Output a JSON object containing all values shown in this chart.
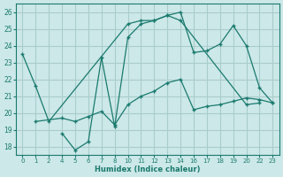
{
  "xlabel": "Humidex (Indice chaleur)",
  "bg_color": "#cce8e8",
  "grid_color": "#aacccc",
  "line_color": "#1a7a6e",
  "ylim": [
    17.5,
    26.5
  ],
  "yticks": [
    18,
    19,
    20,
    21,
    22,
    23,
    24,
    25,
    26
  ],
  "xtick_labels": [
    "0",
    "1",
    "2",
    "4",
    "5",
    "6",
    "7",
    "8",
    "10",
    "11",
    "12",
    "13",
    "14",
    "16",
    "17",
    "18",
    "19",
    "20",
    "22",
    "23"
  ],
  "lines": [
    {
      "xi": [
        0,
        1,
        2,
        8,
        9,
        10,
        11,
        12,
        17,
        18
      ],
      "y": [
        23.5,
        21.6,
        19.5,
        25.3,
        25.5,
        25.5,
        25.8,
        25.5,
        20.5,
        20.6
      ]
    },
    {
      "xi": [
        3,
        4,
        5,
        6,
        7,
        8,
        9,
        10,
        11,
        12,
        13,
        14,
        15,
        16,
        17,
        18,
        19
      ],
      "y": [
        18.8,
        17.8,
        18.3,
        23.3,
        19.2,
        24.5,
        25.3,
        25.5,
        25.8,
        26.0,
        23.6,
        23.7,
        24.1,
        25.2,
        24.0,
        21.5,
        20.6
      ]
    },
    {
      "xi": [
        1,
        3,
        4,
        5,
        6,
        7,
        8,
        9,
        10,
        11,
        12,
        13,
        14,
        15,
        16,
        17,
        18,
        19
      ],
      "y": [
        19.5,
        19.7,
        19.5,
        19.8,
        20.1,
        19.3,
        20.5,
        21.0,
        21.3,
        21.8,
        22.0,
        20.2,
        20.4,
        20.5,
        20.7,
        20.9,
        20.8,
        20.6
      ]
    }
  ]
}
